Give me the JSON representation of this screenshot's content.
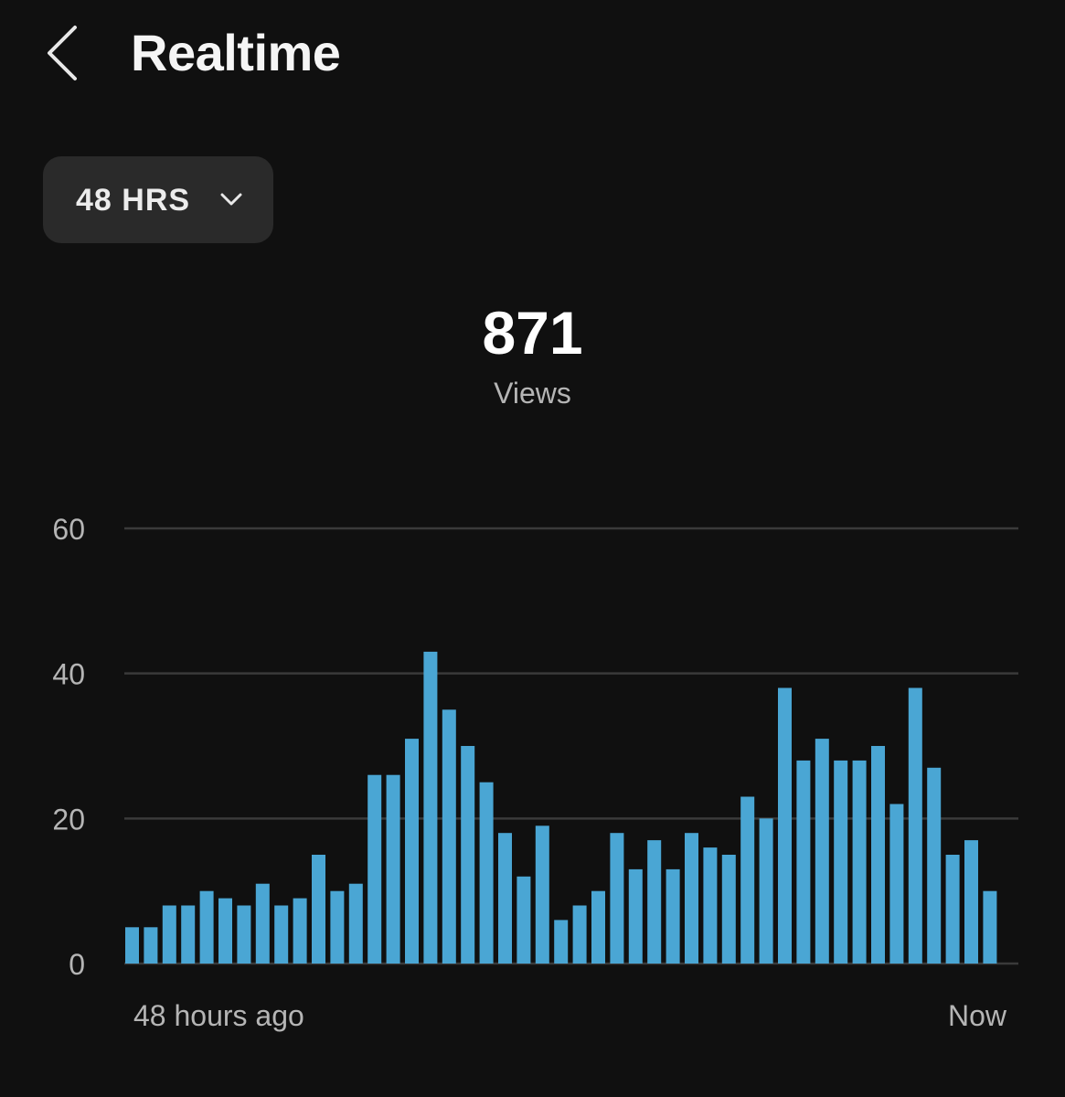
{
  "header": {
    "back_icon": "chevron-left-icon",
    "title": "Realtime"
  },
  "range_selector": {
    "label": "48 HRS",
    "icon": "chevron-down-icon"
  },
  "metric": {
    "value": "871",
    "label": "Views"
  },
  "colors": {
    "background": "#101010",
    "bar": "#4aa6d4",
    "grid": "#3a3a3a",
    "selector_bg": "#2a2a2a"
  },
  "chart_data": {
    "type": "bar",
    "title": "",
    "xlabel": "",
    "ylabel": "",
    "ylim": [
      0,
      60
    ],
    "yticks": [
      0,
      20,
      40,
      60
    ],
    "x_start_label": "48 hours ago",
    "x_end_label": "Now",
    "grid": true,
    "values": [
      5,
      5,
      8,
      8,
      10,
      9,
      8,
      11,
      8,
      9,
      15,
      10,
      11,
      26,
      26,
      31,
      43,
      35,
      30,
      25,
      18,
      12,
      19,
      6,
      8,
      10,
      18,
      13,
      17,
      13,
      18,
      16,
      15,
      23,
      20,
      38,
      28,
      31,
      28,
      28,
      30,
      22,
      38,
      27,
      15,
      17,
      10
    ]
  }
}
